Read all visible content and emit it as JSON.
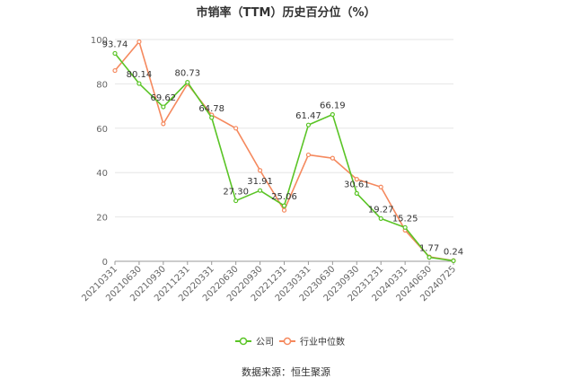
{
  "chart_data": {
    "type": "line",
    "title": "市销率（TTM）历史百分位（%）",
    "xlabel": "",
    "ylabel": "",
    "ylim": [
      0,
      100
    ],
    "yticks": [
      0,
      20,
      40,
      60,
      80,
      100
    ],
    "grid": true,
    "legend_position": "bottom-center",
    "categories": [
      "20210331",
      "20210630",
      "20210930",
      "20211231",
      "20220331",
      "20220630",
      "20220930",
      "20221231",
      "20230331",
      "20230630",
      "20230930",
      "20231231",
      "20240331",
      "20240630",
      "20240725"
    ],
    "series": [
      {
        "name": "公司",
        "color": "#5ac426",
        "values": [
          93.74,
          80.14,
          69.62,
          80.73,
          64.78,
          27.3,
          31.91,
          25.06,
          61.47,
          66.19,
          30.61,
          19.27,
          15.25,
          1.77,
          0.24
        ],
        "labels": [
          "93.74",
          "80.14",
          "69.62",
          "80.73",
          "64.78",
          "27.30",
          "31.91",
          "25.06",
          "61.47",
          "66.19",
          "30.61",
          "19.27",
          "15.25",
          "1.77",
          "0.24"
        ]
      },
      {
        "name": "行业中位数",
        "color": "#f5895e",
        "values": [
          86,
          99,
          62,
          80,
          66,
          60,
          41,
          23,
          48,
          46.5,
          37,
          33.5,
          14,
          2,
          0.3
        ]
      }
    ],
    "source": "数据来源：恒生聚源"
  }
}
